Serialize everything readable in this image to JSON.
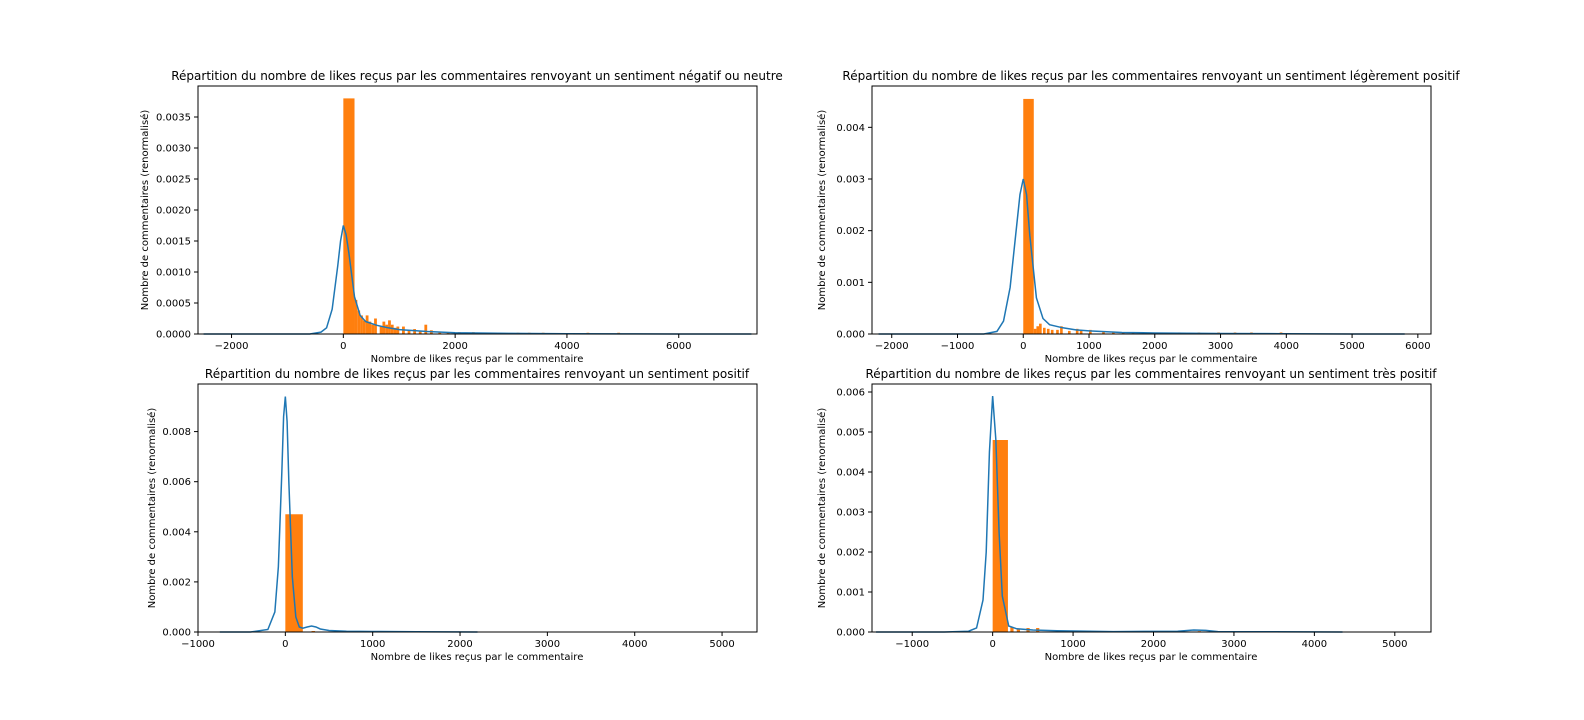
{
  "chart_data": [
    {
      "type": "bar",
      "title": "Répartition du nombre de likes reçus par les commentaires renvoyant un sentiment négatif ou neutre",
      "xlabel": "Nombre de likes reçus par le commentaire",
      "ylabel": "Nombre de commentaires (renormalisé)",
      "xlim": [
        -2600,
        7400
      ],
      "ylim": [
        0,
        0.004
      ],
      "xticks": [
        -2000,
        0,
        2000,
        4000,
        6000
      ],
      "xtick_labels": [
        "−2000",
        "0",
        "2000",
        "4000",
        "6000"
      ],
      "yticks": [
        0,
        0.0005,
        0.001,
        0.0015,
        0.002,
        0.0025,
        0.003,
        0.0035
      ],
      "ytick_labels": [
        "0.0000",
        "0.0005",
        "0.0010",
        "0.0015",
        "0.0020",
        "0.0025",
        "0.0030",
        "0.0035"
      ],
      "histogram": {
        "bins": [
          [
            0,
            200,
            0.0038
          ],
          [
            200,
            250,
            0.00055
          ],
          [
            250,
            300,
            0.00038
          ],
          [
            300,
            350,
            0.0003
          ],
          [
            350,
            400,
            0.00022
          ],
          [
            400,
            450,
            0.0003
          ],
          [
            450,
            500,
            0.0002
          ],
          [
            500,
            550,
            0.00015
          ],
          [
            550,
            600,
            0.00025
          ],
          [
            650,
            700,
            0.00012
          ],
          [
            700,
            750,
            0.0002
          ],
          [
            750,
            800,
            0.00015
          ],
          [
            800,
            850,
            0.00022
          ],
          [
            850,
            900,
            0.00015
          ],
          [
            900,
            950,
            0.0001
          ],
          [
            950,
            1000,
            0.00012
          ],
          [
            1050,
            1100,
            0.00012
          ],
          [
            1150,
            1200,
            6e-05
          ],
          [
            1250,
            1300,
            8e-05
          ],
          [
            1350,
            1400,
            5e-05
          ],
          [
            1450,
            1500,
            0.00015
          ],
          [
            1550,
            1600,
            6e-05
          ],
          [
            1700,
            1750,
            4e-05
          ],
          [
            1850,
            1900,
            3e-05
          ],
          [
            2050,
            2100,
            3e-05
          ],
          [
            2300,
            2350,
            3e-05
          ],
          [
            2500,
            2550,
            2e-05
          ],
          [
            2700,
            2750,
            2e-05
          ],
          [
            3100,
            3150,
            2e-05
          ],
          [
            3300,
            3350,
            2e-05
          ],
          [
            3550,
            3600,
            2e-05
          ],
          [
            4350,
            4400,
            2e-05
          ],
          [
            4900,
            4950,
            2e-05
          ]
        ]
      },
      "kde": {
        "x": [
          -2500,
          -1000,
          -600,
          -400,
          -300,
          -200,
          -100,
          -50,
          0,
          50,
          100,
          200,
          300,
          400,
          600,
          800,
          1000,
          1500,
          2000,
          3000,
          4000,
          5000,
          6000,
          7300
        ],
        "y": [
          0,
          0,
          0,
          3e-05,
          0.0001,
          0.0004,
          0.0011,
          0.0015,
          0.00175,
          0.0016,
          0.0013,
          0.0006,
          0.0003,
          0.0002,
          0.00014,
          0.0001,
          7e-05,
          4e-05,
          2e-05,
          1e-05,
          5e-06,
          2e-06,
          0,
          0
        ]
      }
    },
    {
      "type": "bar",
      "title": "Répartition du nombre de likes reçus par les commentaires renvoyant un sentiment légèrement positif",
      "xlabel": "Nombre de likes reçus par le commentaire",
      "ylabel": "Nombre de commentaires (renormalisé)",
      "xlim": [
        -2300,
        6200
      ],
      "ylim": [
        0,
        0.0048
      ],
      "xticks": [
        -2000,
        -1000,
        0,
        1000,
        2000,
        3000,
        4000,
        5000,
        6000
      ],
      "xtick_labels": [
        "−2000",
        "−1000",
        "0",
        "1000",
        "2000",
        "3000",
        "4000",
        "5000",
        "6000"
      ],
      "yticks": [
        0,
        0.001,
        0.002,
        0.003,
        0.004
      ],
      "ytick_labels": [
        "0.000",
        "0.001",
        "0.002",
        "0.003",
        "0.004"
      ],
      "histogram": {
        "bins": [
          [
            0,
            160,
            0.00455
          ],
          [
            160,
            200,
            0.0001
          ],
          [
            200,
            240,
            0.00015
          ],
          [
            240,
            280,
            0.0002
          ],
          [
            300,
            340,
            0.00012
          ],
          [
            360,
            400,
            0.0001
          ],
          [
            420,
            460,
            8e-05
          ],
          [
            500,
            540,
            8e-05
          ],
          [
            560,
            600,
            0.00015
          ],
          [
            680,
            720,
            6e-05
          ],
          [
            800,
            840,
            0.0001
          ],
          [
            860,
            900,
            6e-05
          ],
          [
            1000,
            1040,
            8e-05
          ],
          [
            1200,
            1240,
            4e-05
          ],
          [
            1350,
            1390,
            4e-05
          ],
          [
            1500,
            1540,
            3e-05
          ],
          [
            1650,
            1690,
            3e-05
          ],
          [
            1900,
            1940,
            3e-05
          ],
          [
            2350,
            2390,
            3e-05
          ],
          [
            2650,
            2690,
            3e-05
          ],
          [
            2950,
            2990,
            3e-05
          ],
          [
            3200,
            3240,
            3e-05
          ],
          [
            3450,
            3490,
            3e-05
          ],
          [
            3900,
            3940,
            3e-05
          ]
        ]
      },
      "kde": {
        "x": [
          -2200,
          -1000,
          -600,
          -400,
          -300,
          -200,
          -100,
          -50,
          0,
          50,
          100,
          200,
          300,
          400,
          600,
          800,
          1000,
          1500,
          2000,
          3000,
          4000,
          5000,
          5800
        ],
        "y": [
          0,
          0,
          0,
          5e-05,
          0.00025,
          0.0009,
          0.0021,
          0.0027,
          0.003,
          0.0027,
          0.0019,
          0.0007,
          0.0003,
          0.00018,
          0.00012,
          8e-05,
          6e-05,
          3e-05,
          2e-05,
          1e-05,
          5e-06,
          0,
          0
        ]
      }
    },
    {
      "type": "bar",
      "title": "Répartition du nombre de likes reçus par les commentaires renvoyant un sentiment positif",
      "xlabel": "Nombre de likes reçus par le commentaire",
      "ylabel": "Nombre de commentaires (renormalisé)",
      "xlim": [
        -1000,
        5400
      ],
      "ylim": [
        0,
        0.0099
      ],
      "xticks": [
        -1000,
        0,
        1000,
        2000,
        3000,
        4000,
        5000
      ],
      "xtick_labels": [
        "−1000",
        "0",
        "1000",
        "2000",
        "3000",
        "4000",
        "5000"
      ],
      "yticks": [
        0,
        0.002,
        0.004,
        0.006,
        0.008
      ],
      "ytick_labels": [
        "0.000",
        "0.002",
        "0.004",
        "0.006",
        "0.008"
      ],
      "histogram": {
        "bins": [
          [
            0,
            200,
            0.0047
          ],
          [
            300,
            340,
            4e-05
          ],
          [
            1200,
            1240,
            2e-05
          ],
          [
            1480,
            1520,
            2e-05
          ]
        ]
      },
      "kde": {
        "x": [
          -750,
          -400,
          -200,
          -120,
          -80,
          -40,
          -20,
          0,
          20,
          40,
          80,
          120,
          160,
          200,
          250,
          300,
          350,
          400,
          500,
          700,
          1000,
          1500,
          2200
        ],
        "y": [
          0,
          0,
          0.0001,
          0.0008,
          0.0026,
          0.0064,
          0.0086,
          0.0094,
          0.0084,
          0.006,
          0.0022,
          0.0006,
          0.0002,
          0.00015,
          0.0002,
          0.00024,
          0.0002,
          0.00012,
          6e-05,
          3e-05,
          2e-05,
          1e-05,
          0
        ]
      }
    },
    {
      "type": "bar",
      "title": "Répartition du nombre de likes reçus par les commentaires renvoyant un sentiment très positif",
      "xlabel": "Nombre de likes reçus par le commentaire",
      "ylabel": "Nombre de commentaires (renormalisé)",
      "xlim": [
        -1500,
        5450
      ],
      "ylim": [
        0,
        0.0062
      ],
      "xticks": [
        -1000,
        0,
        1000,
        2000,
        3000,
        4000,
        5000
      ],
      "xtick_labels": [
        "−1000",
        "0",
        "1000",
        "2000",
        "3000",
        "4000",
        "5000"
      ],
      "yticks": [
        0,
        0.001,
        0.002,
        0.003,
        0.004,
        0.005,
        0.006
      ],
      "ytick_labels": [
        "0.000",
        "0.001",
        "0.002",
        "0.003",
        "0.004",
        "0.005",
        "0.006"
      ],
      "histogram": {
        "bins": [
          [
            0,
            190,
            0.0048
          ],
          [
            220,
            260,
            0.00012
          ],
          [
            300,
            340,
            8e-05
          ],
          [
            420,
            460,
            0.0001
          ],
          [
            540,
            580,
            0.0001
          ],
          [
            1000,
            1040,
            2e-05
          ],
          [
            2550,
            2590,
            2e-05
          ],
          [
            2930,
            2970,
            2e-05
          ]
        ]
      },
      "kde": {
        "x": [
          -1450,
          -600,
          -300,
          -200,
          -120,
          -80,
          -40,
          0,
          40,
          80,
          120,
          200,
          300,
          500,
          800,
          1500,
          2300,
          2500,
          2650,
          2800,
          3500,
          4350
        ],
        "y": [
          0,
          0,
          2e-05,
          0.0001,
          0.0008,
          0.002,
          0.0045,
          0.0059,
          0.0048,
          0.0025,
          0.0009,
          0.00015,
          8e-05,
          5e-05,
          3e-05,
          1e-05,
          2e-05,
          5e-05,
          4e-05,
          1e-05,
          5e-06,
          0
        ]
      }
    }
  ]
}
